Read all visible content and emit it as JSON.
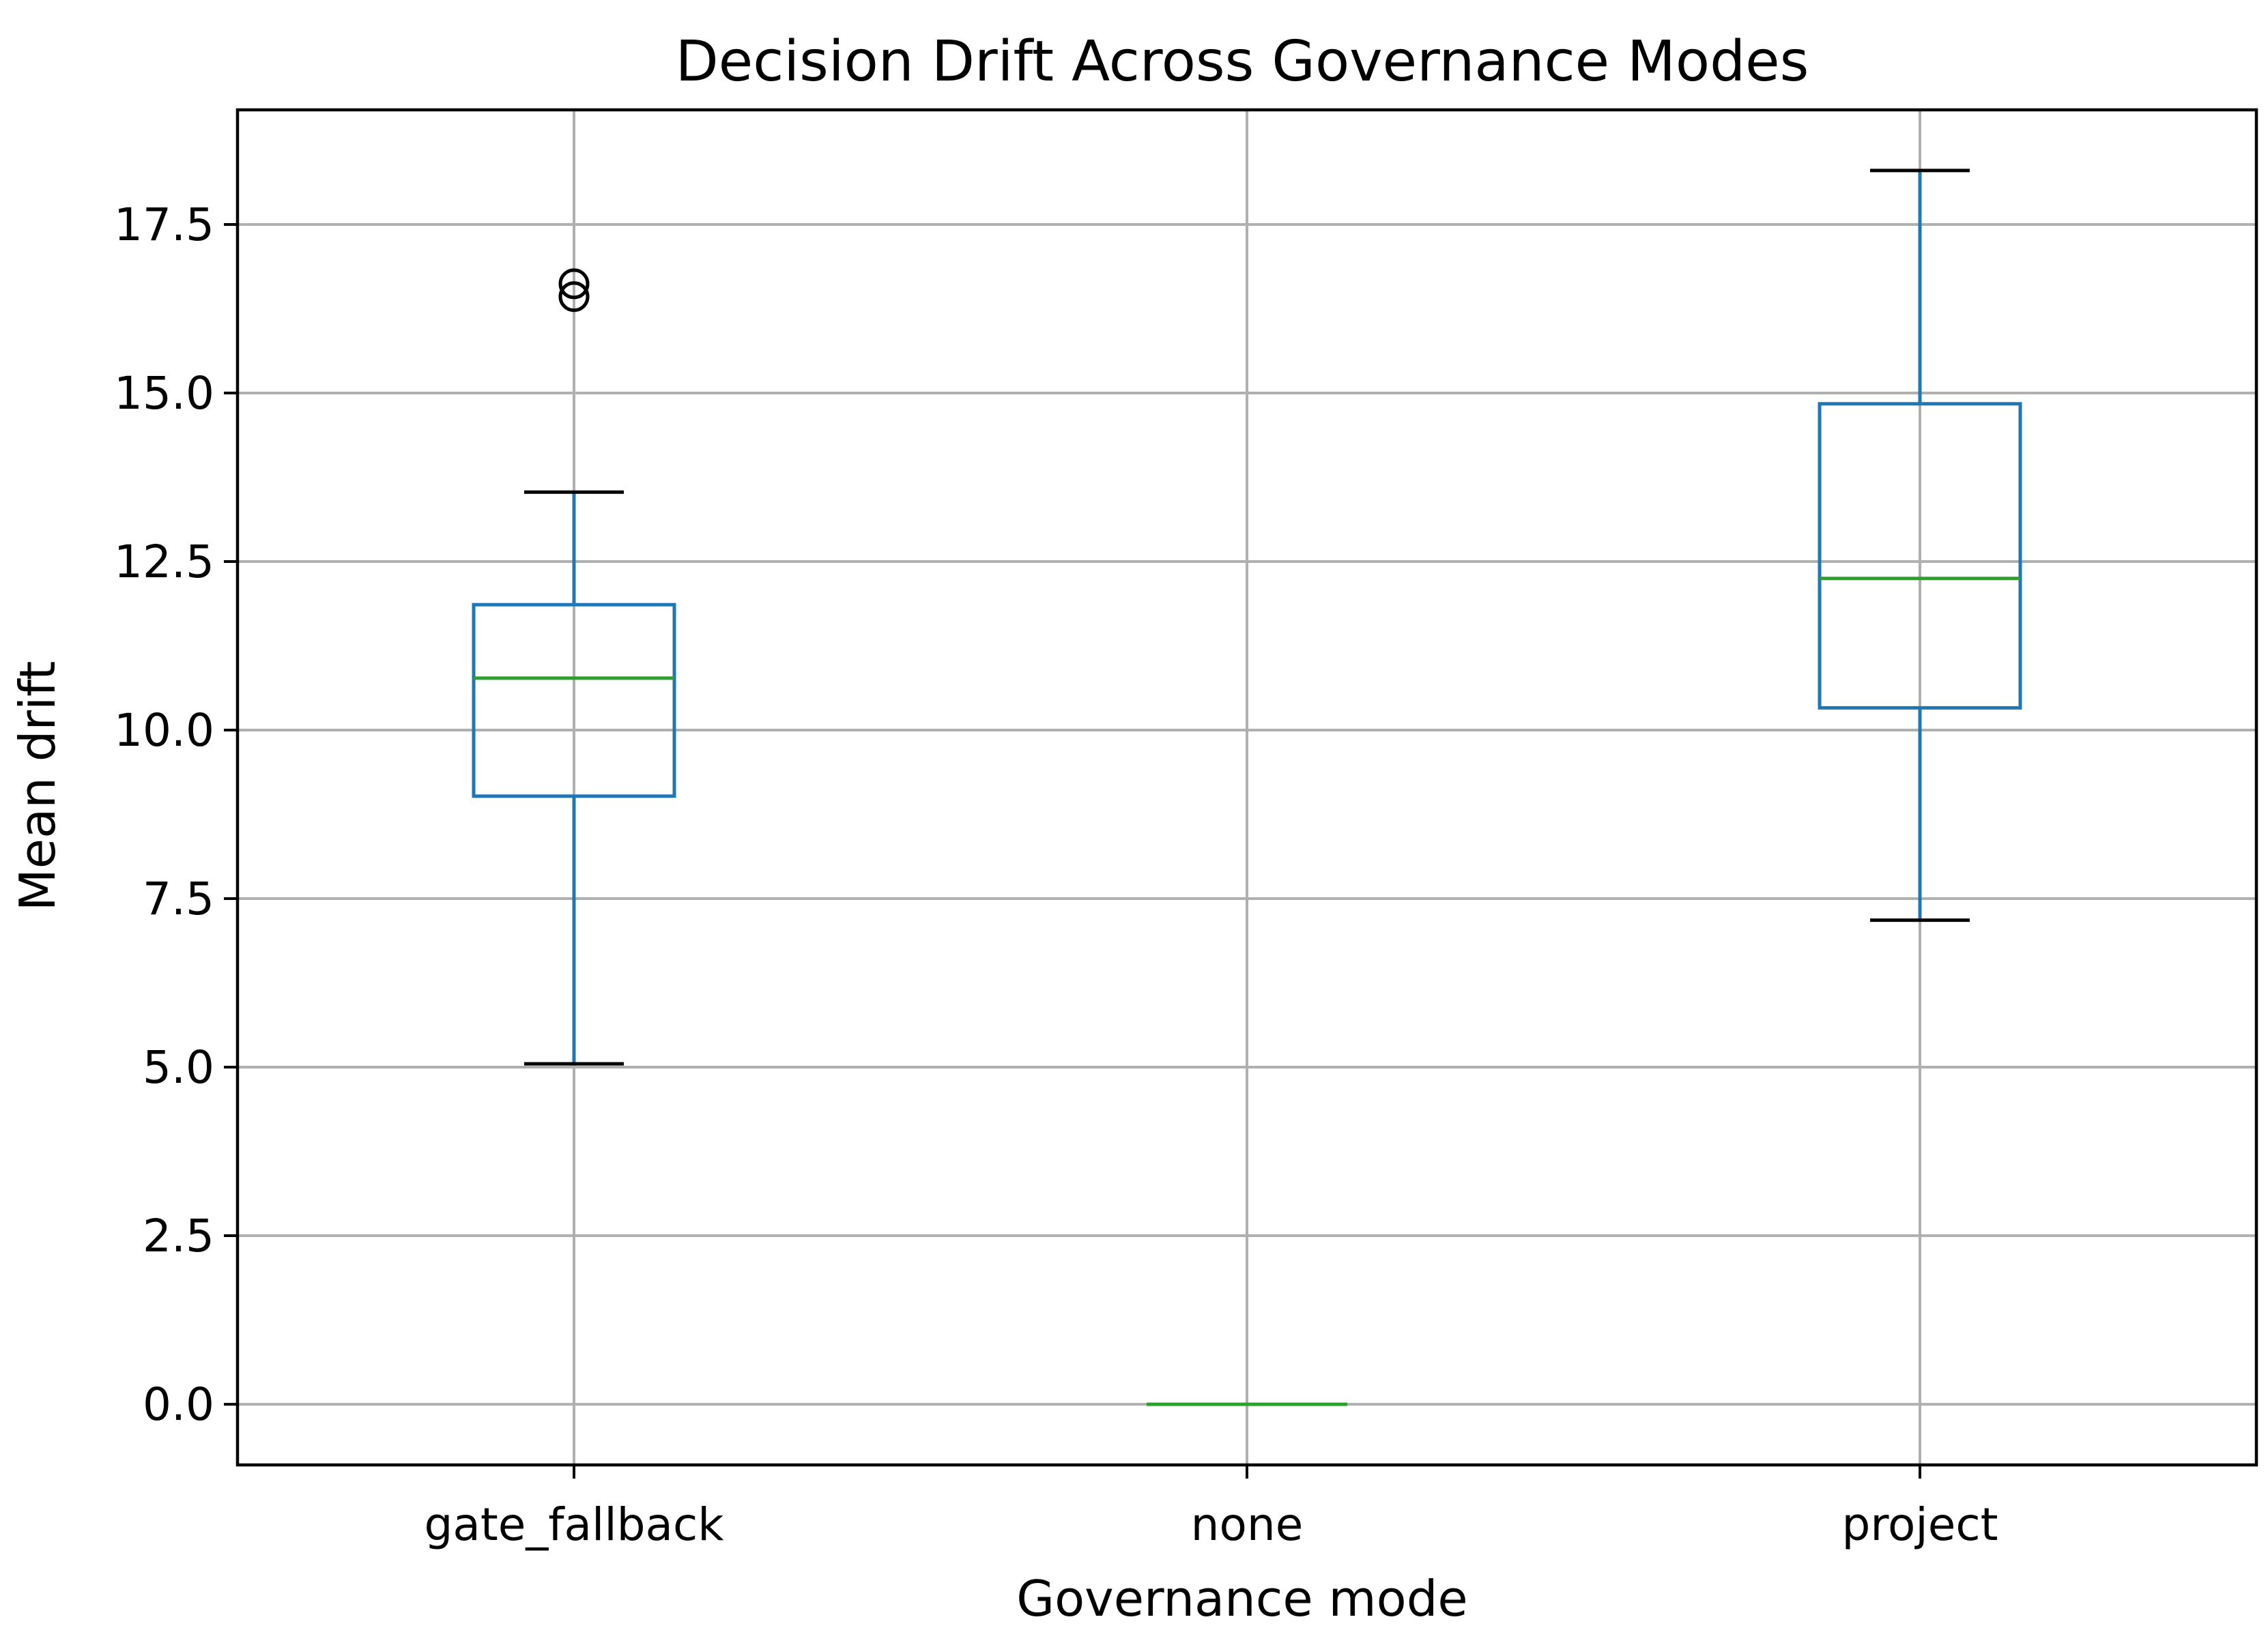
{
  "chart_data": {
    "type": "box",
    "title": "Decision Drift Across Governance Modes",
    "xlabel": "Governance mode",
    "ylabel": "Mean drift",
    "ylim": [
      -0.9,
      19.2
    ],
    "yticks": [
      "0.0",
      "2.5",
      "5.0",
      "7.5",
      "10.0",
      "12.5",
      "15.0",
      "17.5"
    ],
    "grid": true,
    "legend": "none",
    "categories": [
      "gate_fallback",
      "none",
      "project"
    ],
    "boxes": [
      {
        "category": "gate_fallback",
        "whisker_low": 5.05,
        "q1": 9.02,
        "median": 10.77,
        "q3": 11.86,
        "whisker_high": 13.53,
        "outliers": [
          16.43,
          16.62
        ]
      },
      {
        "category": "none",
        "whisker_low": 0.0,
        "q1": 0.0,
        "median": 0.0,
        "q3": 0.0,
        "whisker_high": 0.0,
        "outliers": []
      },
      {
        "category": "project",
        "whisker_low": 7.18,
        "q1": 10.33,
        "median": 12.25,
        "q3": 14.84,
        "whisker_high": 18.3,
        "outliers": []
      }
    ],
    "colors": {
      "box": "#1f77b4",
      "median": "#2ca02c",
      "caps": "#000000",
      "outliers": "#000000",
      "grid": "#b0b0b0"
    }
  }
}
